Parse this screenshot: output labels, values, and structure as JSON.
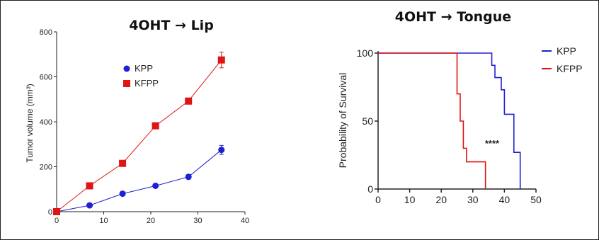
{
  "chart_data": [
    {
      "type": "line",
      "title": "4OHT → Lip",
      "xlabel": "",
      "ylabel": "Tumor volume (mm³)",
      "xlim": [
        0,
        40
      ],
      "ylim": [
        0,
        800
      ],
      "xticks": [
        0,
        10,
        20,
        30,
        40
      ],
      "yticks": [
        0,
        200,
        400,
        600,
        800
      ],
      "series": [
        {
          "name": "KPP",
          "color": "#1f1fd6",
          "marker": "circle",
          "x": [
            0,
            7,
            14,
            21,
            28,
            35
          ],
          "y": [
            0,
            28,
            80,
            115,
            155,
            275
          ],
          "err": [
            0,
            6,
            8,
            8,
            10,
            20
          ]
        },
        {
          "name": "KFPP",
          "color": "#e01414",
          "marker": "square",
          "x": [
            0,
            7,
            14,
            21,
            28,
            35
          ],
          "y": [
            0,
            115,
            215,
            382,
            492,
            675
          ],
          "err": [
            0,
            8,
            10,
            12,
            12,
            35
          ]
        }
      ],
      "legend_position": "top-left"
    },
    {
      "type": "line",
      "title": "4OHT → Tongue",
      "xlabel": "",
      "ylabel": "Probability of Survival",
      "xlim": [
        0,
        50
      ],
      "ylim": [
        0,
        100
      ],
      "xticks": [
        0,
        10,
        20,
        30,
        40,
        50
      ],
      "yticks": [
        0,
        50,
        100
      ],
      "annotation": "****",
      "series": [
        {
          "name": "KPP",
          "color": "#1f1fd6",
          "step": true,
          "x": [
            0,
            36,
            37,
            39,
            40,
            43,
            45
          ],
          "y": [
            100,
            91,
            82,
            73,
            55,
            27,
            0
          ]
        },
        {
          "name": "KFPP",
          "color": "#e01414",
          "step": true,
          "x": [
            0,
            25,
            26,
            27,
            28,
            29,
            34
          ],
          "y": [
            100,
            70,
            50,
            30,
            20,
            20,
            0
          ]
        }
      ],
      "legend_position": "right"
    }
  ]
}
